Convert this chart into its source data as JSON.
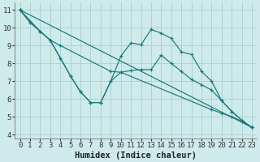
{
  "xlabel": "Humidex (Indice chaleur)",
  "xlim": [
    -0.5,
    23.5
  ],
  "ylim": [
    3.8,
    11.4
  ],
  "yticks": [
    4,
    5,
    6,
    7,
    8,
    9,
    10,
    11
  ],
  "xticks": [
    0,
    1,
    2,
    3,
    4,
    5,
    6,
    7,
    8,
    9,
    10,
    11,
    12,
    13,
    14,
    15,
    16,
    17,
    18,
    19,
    20,
    21,
    22,
    23
  ],
  "bg_color": "#ceeaea",
  "grid_color": "#aacfcf",
  "line_color": "#1a7878",
  "lines": [
    {
      "x": [
        0,
        23
      ],
      "y": [
        11.0,
        4.4
      ]
    },
    {
      "x": [
        0,
        2,
        3,
        4,
        9,
        10,
        19,
        20,
        21,
        22,
        23
      ],
      "y": [
        11.0,
        9.8,
        9.3,
        9.0,
        7.55,
        7.5,
        5.4,
        5.2,
        5.0,
        4.75,
        4.4
      ]
    },
    {
      "x": [
        0,
        1,
        2,
        3,
        4,
        5,
        6,
        7,
        8,
        9,
        10,
        11,
        12,
        13,
        14,
        15,
        16,
        17,
        18,
        19,
        20,
        21,
        22,
        23
      ],
      "y": [
        11.0,
        10.3,
        9.8,
        9.3,
        8.3,
        7.3,
        6.4,
        5.8,
        5.8,
        7.0,
        7.5,
        7.6,
        7.65,
        7.65,
        8.45,
        8.0,
        7.55,
        7.1,
        6.8,
        6.5,
        5.9,
        5.3,
        4.8,
        4.4
      ]
    },
    {
      "x": [
        0,
        1,
        2,
        3,
        4,
        5,
        6,
        7,
        8,
        9,
        10,
        11,
        12,
        13,
        14,
        15,
        16,
        17,
        18,
        19,
        20,
        21,
        22,
        23
      ],
      "y": [
        11.0,
        10.3,
        9.8,
        9.3,
        8.3,
        7.3,
        6.4,
        5.8,
        5.8,
        7.0,
        8.4,
        9.15,
        9.05,
        9.9,
        9.7,
        9.4,
        8.65,
        8.5,
        7.55,
        7.0,
        5.9,
        5.3,
        4.8,
        4.4
      ]
    }
  ],
  "font_family": "monospace",
  "xlabel_fontsize": 7.5,
  "tick_fontsize": 6.5
}
